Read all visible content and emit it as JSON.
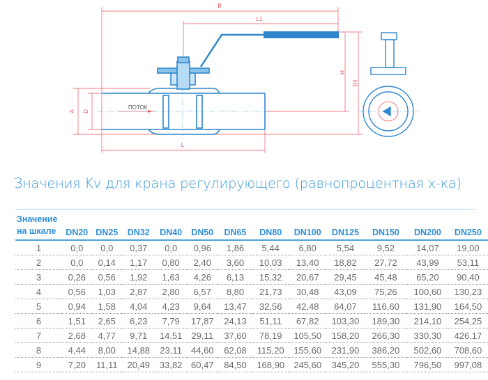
{
  "drawing": {
    "labels": {
      "B": "B",
      "L1": "L1",
      "H": "H",
      "H1": "H1",
      "A": "A",
      "D": "D",
      "L": "L",
      "flow": "ПОТОК"
    },
    "colors": {
      "part": "#2f86cc",
      "dimension": "#e8505b",
      "axis": "#6fb6e6"
    }
  },
  "title": "Значения Kv для крана регулирующего (равнопроцентная х-ка)",
  "table": {
    "first_header": [
      "Значение",
      "на шкале"
    ],
    "columns": [
      "DN20",
      "DN25",
      "DN32",
      "DN40",
      "DN50",
      "DN65",
      "DN80",
      "DN100",
      "DN125",
      "DN150",
      "DN200",
      "DN250"
    ],
    "rows": [
      {
        "scale": "1",
        "values": [
          "0,0",
          "0,0",
          "0,37",
          "0,0",
          "0,96",
          "1,86",
          "5,44",
          "6,80",
          "5,54",
          "9,52",
          "14,07",
          "19,00"
        ]
      },
      {
        "scale": "2",
        "values": [
          "0,0",
          "0,14",
          "1,17",
          "0,80",
          "2,40",
          "3,60",
          "10,03",
          "13,40",
          "18,82",
          "27,72",
          "43,99",
          "53,11"
        ]
      },
      {
        "scale": "3",
        "values": [
          "0,26",
          "0,56",
          "1,92",
          "1,63",
          "4,26",
          "6,13",
          "15,32",
          "20,67",
          "29,45",
          "45,48",
          "65,20",
          "90,40"
        ]
      },
      {
        "scale": "4",
        "values": [
          "0,56",
          "1,03",
          "2,87",
          "2,80",
          "6,57",
          "8,80",
          "21,73",
          "30,48",
          "43,09",
          "75,26",
          "100,60",
          "130,23"
        ]
      },
      {
        "scale": "5",
        "values": [
          "0,94",
          "1,58",
          "4,04",
          "4,23",
          "9,64",
          "13,47",
          "32,56",
          "42,48",
          "64,07",
          "116,60",
          "131,90",
          "164,50"
        ]
      },
      {
        "scale": "6",
        "values": [
          "1,51",
          "2,65",
          "6,23",
          "7,79",
          "17,87",
          "24,13",
          "51,11",
          "67,82",
          "103,30",
          "189,30",
          "214,10",
          "254,25"
        ]
      },
      {
        "scale": "7",
        "values": [
          "2,68",
          "4,77",
          "9,71",
          "14,51",
          "29,11",
          "37,60",
          "78,19",
          "105,50",
          "158,20",
          "266,30",
          "330,30",
          "426,17"
        ]
      },
      {
        "scale": "8",
        "values": [
          "4,44",
          "8,00",
          "14,88",
          "23,11",
          "44,60",
          "62,08",
          "115,20",
          "155,60",
          "231,90",
          "386,20",
          "502,60",
          "708,60"
        ]
      },
      {
        "scale": "9",
        "values": [
          "7,20",
          "11,11",
          "20,49",
          "33,82",
          "60,47",
          "84,50",
          "168,90",
          "245,60",
          "345,20",
          "555,30",
          "796,50",
          "997,08"
        ]
      }
    ]
  }
}
